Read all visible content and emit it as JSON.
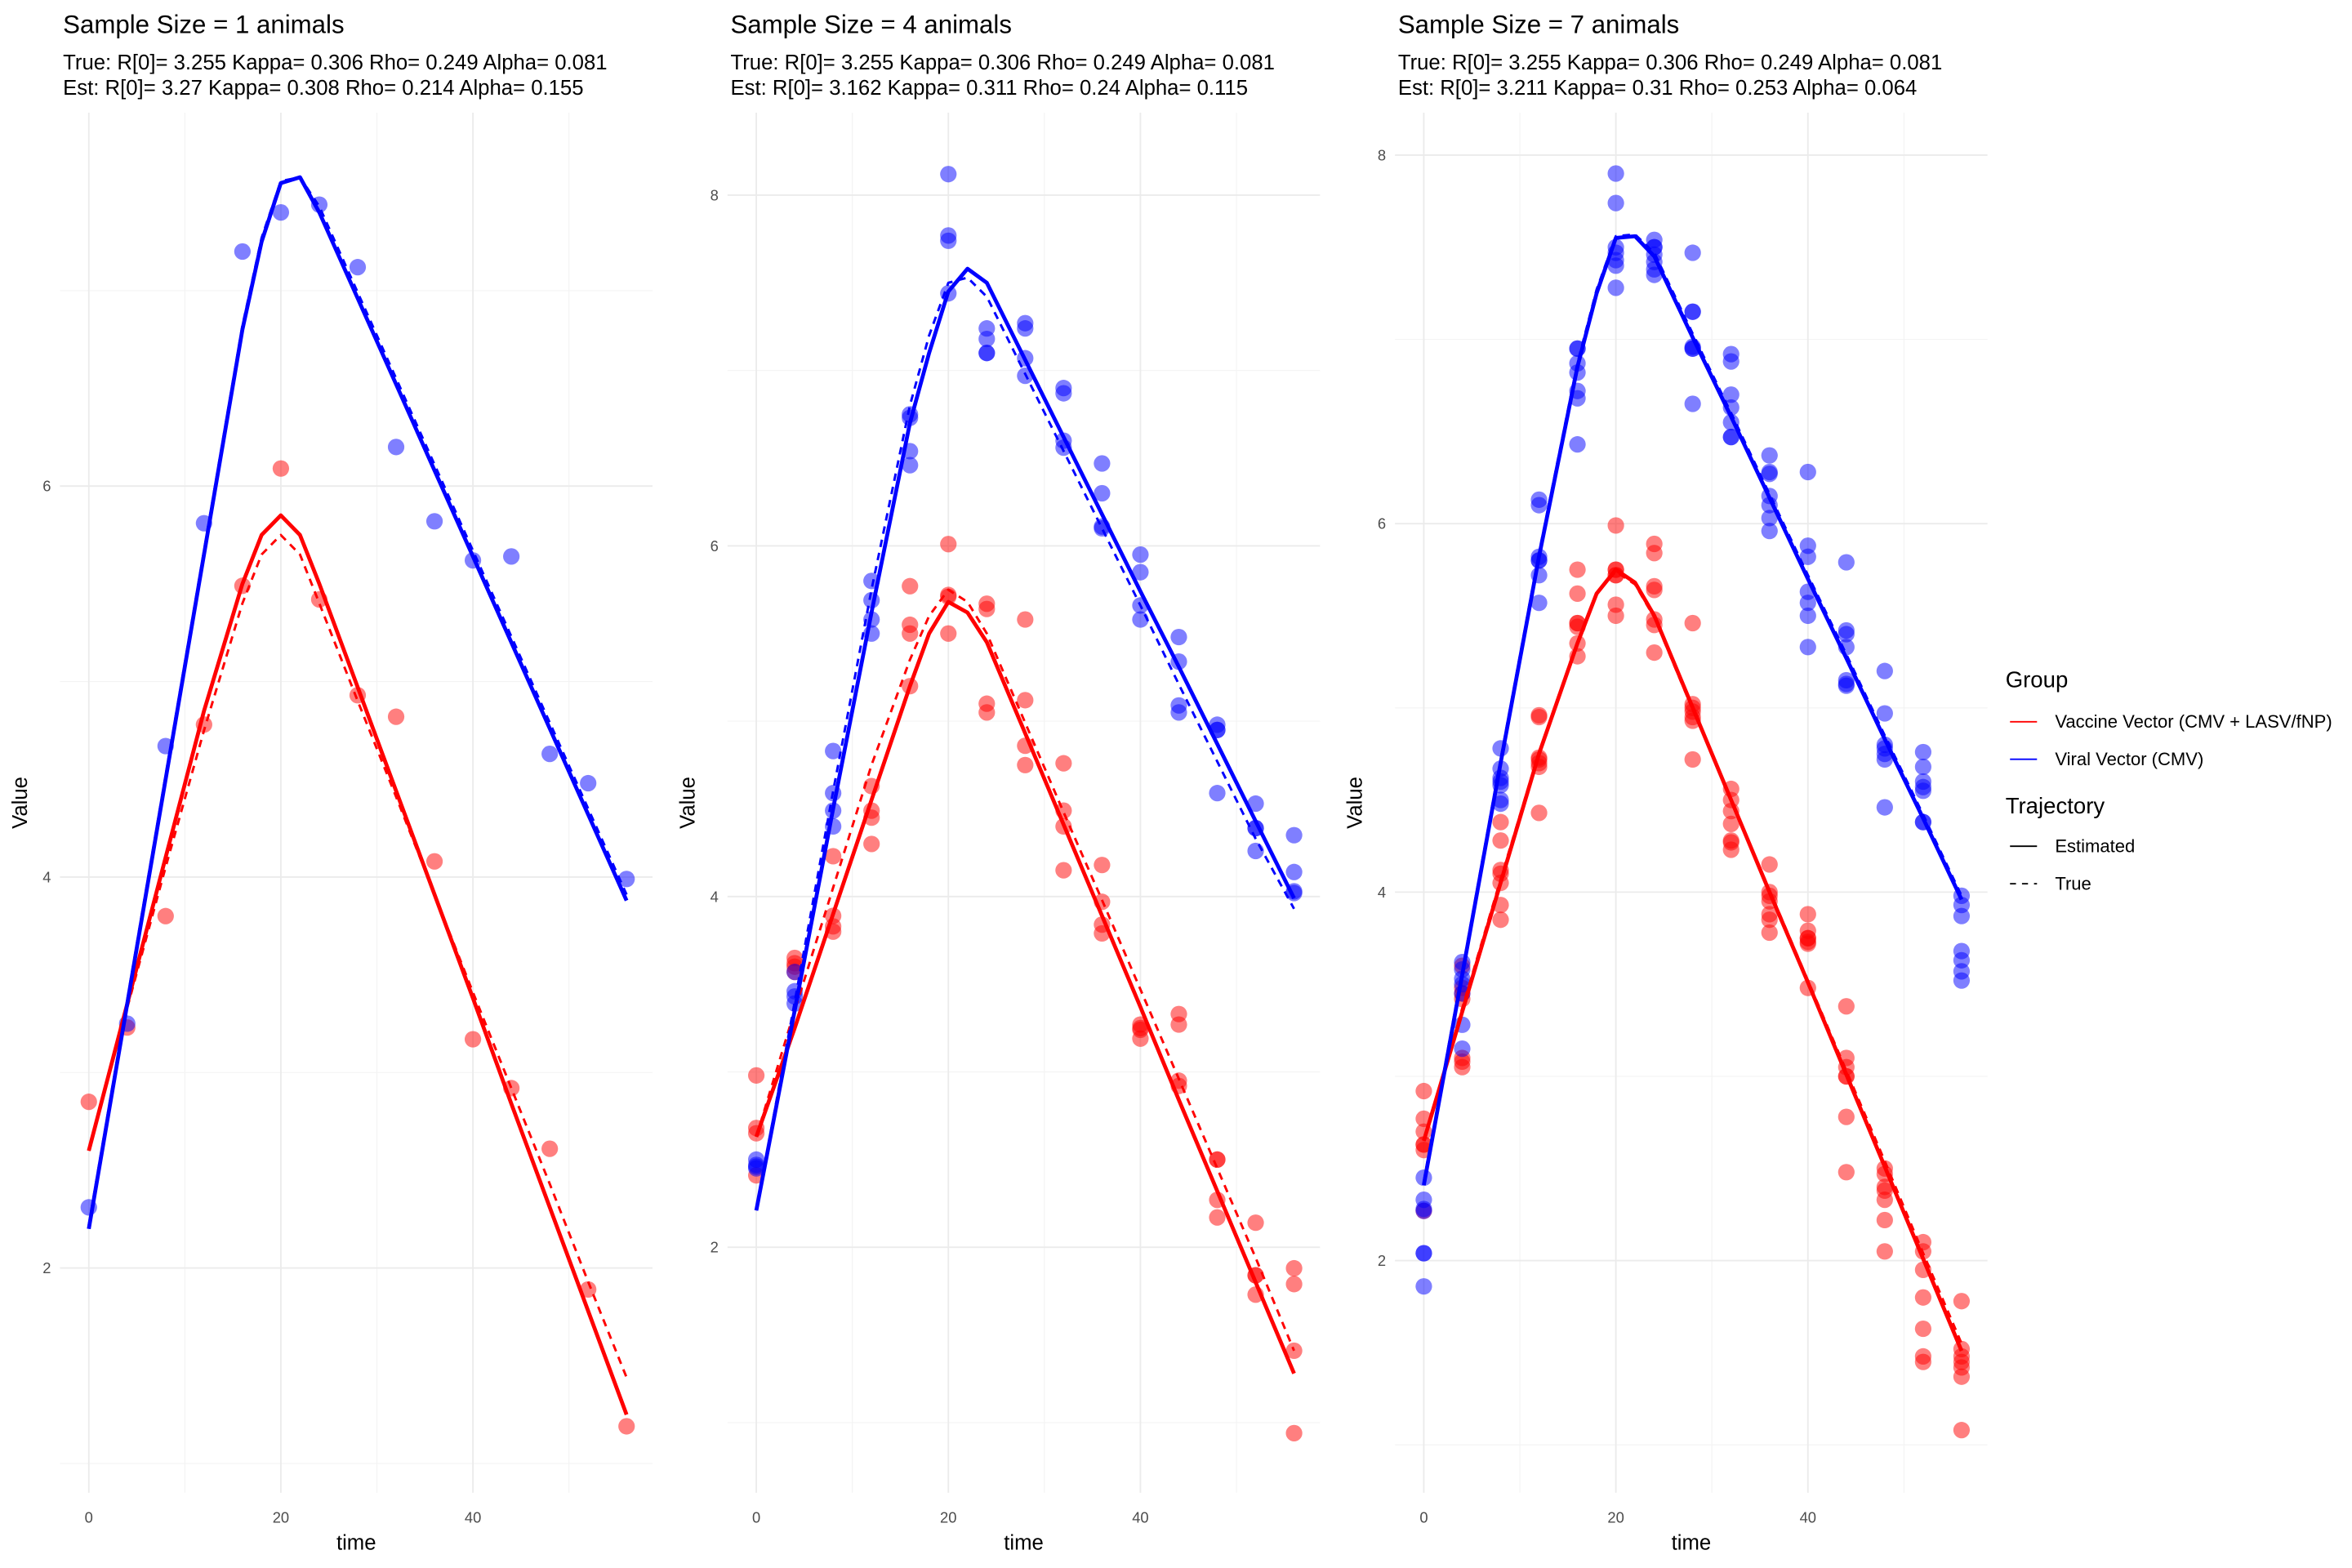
{
  "legend": {
    "group_title": "Group",
    "groups": [
      {
        "label": "Vaccine Vector (CMV + LASV/fNP)",
        "color": "#FF0000"
      },
      {
        "label": "Viral Vector (CMV)",
        "color": "#0000FF"
      }
    ],
    "trajectory_title": "Trajectory",
    "trajectories": [
      {
        "label": "Estimated",
        "style": "solid"
      },
      {
        "label": "True",
        "style": "dashed"
      }
    ]
  },
  "chart_data": [
    {
      "type": "scatter",
      "title": "Sample Size = 1 animals",
      "subtitle_true": "True: R[0]= 3.255 Kappa= 0.306 Rho= 0.249 Alpha= 0.081",
      "subtitle_est": "Est: R[0]= 3.27 Kappa= 0.308 Rho= 0.214 Alpha= 0.155",
      "xlabel": "time",
      "ylabel": "Value",
      "xlim": [
        -3,
        58.7
      ],
      "ylim": [
        0.85,
        7.91
      ],
      "xticks": [
        0,
        20,
        40
      ],
      "yticks": [
        2,
        4,
        6
      ],
      "times": [
        0,
        4,
        8,
        12,
        16,
        20,
        24,
        28,
        32,
        36,
        40,
        44,
        48,
        52,
        56
      ],
      "observations": {
        "blue": [
          [
            2.31
          ],
          [
            3.25
          ],
          [
            4.67
          ],
          [
            5.81
          ],
          [
            7.2
          ],
          [
            7.4
          ],
          [
            7.44
          ],
          [
            7.12
          ],
          [
            6.2
          ],
          [
            5.82
          ],
          [
            5.62
          ],
          [
            5.64
          ],
          [
            4.63
          ],
          [
            4.48
          ],
          [
            3.99
          ]
        ],
        "red": [
          [
            2.85
          ],
          [
            3.23
          ],
          [
            3.8
          ],
          [
            4.78
          ],
          [
            5.49
          ],
          [
            6.09
          ],
          [
            5.42
          ],
          [
            4.93
          ],
          [
            4.82
          ],
          [
            4.08
          ],
          [
            3.17
          ],
          [
            2.92
          ],
          [
            2.61
          ],
          [
            1.89
          ],
          [
            1.19
          ]
        ]
      },
      "curve_times": [
        0,
        4,
        8,
        12,
        16,
        18,
        20,
        22,
        24,
        28,
        32,
        36,
        40,
        44,
        48,
        52,
        56
      ],
      "curves": {
        "blue_est": [
          2.2,
          3.35,
          4.5,
          5.65,
          6.8,
          7.25,
          7.55,
          7.58,
          7.4,
          6.96,
          6.52,
          6.08,
          5.64,
          5.2,
          4.76,
          4.32,
          3.88
        ],
        "blue_true": [
          2.22,
          3.37,
          4.52,
          5.67,
          6.82,
          7.27,
          7.56,
          7.58,
          7.43,
          6.99,
          6.55,
          6.11,
          5.67,
          5.23,
          4.79,
          4.35,
          3.91
        ],
        "red_est": [
          2.6,
          3.35,
          4.1,
          4.85,
          5.5,
          5.75,
          5.85,
          5.75,
          5.5,
          4.97,
          4.44,
          3.91,
          3.38,
          2.84,
          2.31,
          1.78,
          1.25
        ],
        "red_true": [
          2.6,
          3.33,
          4.05,
          4.75,
          5.4,
          5.65,
          5.75,
          5.65,
          5.4,
          4.9,
          4.41,
          3.91,
          3.41,
          2.92,
          2.43,
          1.93,
          1.44
        ]
      }
    },
    {
      "type": "scatter",
      "title": "Sample Size = 4 animals",
      "subtitle_true": "True: R[0]= 3.255 Kappa= 0.306 Rho= 0.249 Alpha= 0.081",
      "subtitle_est": "Est: R[0]= 3.162 Kappa= 0.311 Rho= 0.24 Alpha= 0.115",
      "xlabel": "time",
      "ylabel": "Value",
      "xlim": [
        -3,
        58.7
      ],
      "ylim": [
        0.6,
        8.47
      ],
      "xticks": [
        0,
        20,
        40
      ],
      "yticks": [
        2,
        4,
        6,
        8
      ],
      "times": [
        0,
        4,
        8,
        12,
        16,
        20,
        24,
        28,
        32,
        36,
        40,
        44,
        48,
        52,
        56
      ],
      "observations": {
        "blue": [
          [
            2.5,
            2.47,
            2.45,
            2.46
          ],
          [
            3.57,
            3.46,
            3.43,
            3.39
          ],
          [
            4.83,
            4.59,
            4.49,
            4.4
          ],
          [
            5.8,
            5.69,
            5.58,
            5.5
          ],
          [
            6.75,
            6.73,
            6.54,
            6.46
          ],
          [
            8.12,
            7.77,
            7.74,
            7.44
          ],
          [
            7.24,
            7.18,
            7.1,
            7.1
          ],
          [
            7.27,
            7.24,
            7.07,
            6.97
          ],
          [
            6.9,
            6.87,
            6.6,
            6.56
          ],
          [
            6.47,
            6.3,
            6.11,
            6.1
          ],
          [
            5.95,
            5.85,
            5.66,
            5.58
          ],
          [
            5.48,
            5.34,
            5.09,
            5.05
          ],
          [
            4.98,
            4.95,
            4.59,
            4.95
          ],
          [
            4.53,
            4.39,
            4.26,
            4.39
          ],
          [
            4.35,
            4.14,
            4.03,
            4.02
          ]
        ],
        "red": [
          [
            2.98,
            2.68,
            2.41,
            2.65
          ],
          [
            3.65,
            3.62,
            3.57,
            3.6
          ],
          [
            4.23,
            3.89,
            3.83,
            3.8
          ],
          [
            4.63,
            4.49,
            4.45,
            4.3
          ],
          [
            5.77,
            5.55,
            5.5,
            5.2
          ],
          [
            6.01,
            5.71,
            5.5,
            5.72
          ],
          [
            5.67,
            5.64,
            5.1,
            5.05
          ],
          [
            5.58,
            5.12,
            4.86,
            4.75
          ],
          [
            4.76,
            4.49,
            4.4,
            4.15
          ],
          [
            4.18,
            3.97,
            3.84,
            3.79
          ],
          [
            3.27,
            3.24,
            3.19,
            3.25
          ],
          [
            3.33,
            3.27,
            2.95,
            2.92
          ],
          [
            2.5,
            2.27,
            2.17,
            2.5
          ],
          [
            2.14,
            1.84,
            1.73,
            1.84
          ],
          [
            1.88,
            1.79,
            1.41,
            0.94
          ]
        ]
      },
      "curve_times": [
        0,
        4,
        8,
        12,
        16,
        18,
        20,
        22,
        24,
        28,
        32,
        36,
        40,
        44,
        48,
        52,
        56
      ],
      "curves": {
        "blue_est": [
          2.21,
          3.35,
          4.5,
          5.62,
          6.7,
          7.1,
          7.45,
          7.58,
          7.5,
          7.06,
          6.62,
          6.18,
          5.74,
          5.31,
          4.87,
          4.43,
          3.99
        ],
        "blue_true": [
          2.21,
          3.4,
          4.6,
          5.75,
          6.8,
          7.2,
          7.5,
          7.53,
          7.42,
          6.98,
          6.54,
          6.1,
          5.66,
          5.21,
          4.77,
          4.33,
          3.93
        ],
        "red_est": [
          2.63,
          3.25,
          3.9,
          4.55,
          5.2,
          5.5,
          5.68,
          5.62,
          5.45,
          4.93,
          4.41,
          3.89,
          3.37,
          2.84,
          2.32,
          1.8,
          1.28
        ],
        "red_true": [
          2.63,
          3.35,
          4.05,
          4.75,
          5.35,
          5.6,
          5.75,
          5.68,
          5.5,
          4.99,
          4.48,
          3.98,
          3.47,
          2.96,
          2.45,
          1.94,
          1.41
        ]
      }
    },
    {
      "type": "scatter",
      "title": "Sample Size = 7 animals",
      "subtitle_true": "True: R[0]= 3.255 Kappa= 0.306 Rho= 0.249 Alpha= 0.081",
      "subtitle_est": "Est: R[0]= 3.211 Kappa= 0.31 Rho= 0.253 Alpha= 0.064",
      "xlabel": "time",
      "ylabel": "Value",
      "xlim": [
        -3,
        58.7
      ],
      "ylim": [
        0.74,
        8.23
      ],
      "xticks": [
        0,
        20,
        40
      ],
      "yticks": [
        2,
        4,
        6,
        8
      ],
      "times": [
        0,
        4,
        8,
        12,
        16,
        20,
        24,
        28,
        32,
        36,
        40,
        44,
        48,
        52,
        56
      ],
      "observations": {
        "blue": [
          [
            2.33,
            2.28,
            2.27,
            2.04,
            2.04,
            1.86,
            2.45
          ],
          [
            3.62,
            3.58,
            3.53,
            3.5,
            3.45,
            3.28,
            3.15
          ],
          [
            4.78,
            4.67,
            4.62,
            4.58,
            4.5,
            4.48,
            4.6
          ],
          [
            6.13,
            6.1,
            5.82,
            5.8,
            5.72,
            5.57,
            5.8
          ],
          [
            6.95,
            6.87,
            6.82,
            6.72,
            6.68,
            6.43,
            6.95
          ],
          [
            7.9,
            7.74,
            7.47,
            7.43,
            7.4,
            7.28,
            7.5
          ],
          [
            7.54,
            7.5,
            7.46,
            7.42,
            7.38,
            7.35,
            7.5
          ],
          [
            7.47,
            7.15,
            6.96,
            6.95,
            6.65,
            7.15,
            6.95
          ],
          [
            6.92,
            6.88,
            6.7,
            6.63,
            6.55,
            6.47,
            6.47
          ],
          [
            6.37,
            6.28,
            6.27,
            6.15,
            6.1,
            6.03,
            5.96
          ],
          [
            6.28,
            5.88,
            5.82,
            5.63,
            5.57,
            5.5,
            5.33
          ],
          [
            5.79,
            5.42,
            5.4,
            5.33,
            5.15,
            5.12,
            5.13
          ],
          [
            5.2,
            4.97,
            4.8,
            4.78,
            4.75,
            4.72,
            4.46
          ],
          [
            4.76,
            4.68,
            4.6,
            4.57,
            4.55,
            4.38,
            4.38
          ],
          [
            3.98,
            3.93,
            3.87,
            3.68,
            3.63,
            3.57,
            3.52
          ]
        ],
        "red": [
          [
            2.92,
            2.77,
            2.7,
            2.63,
            2.6,
            2.27,
            2.63
          ],
          [
            3.6,
            3.48,
            3.42,
            3.1,
            3.08,
            3.05,
            3.45
          ],
          [
            4.38,
            4.28,
            4.12,
            4.05,
            3.93,
            3.85,
            4.1
          ],
          [
            4.96,
            4.73,
            4.7,
            4.72,
            4.68,
            4.43,
            4.95
          ],
          [
            5.75,
            5.62,
            5.46,
            5.35,
            5.28,
            5.44,
            5.46
          ],
          [
            5.99,
            5.75,
            5.72,
            5.56,
            5.5,
            5.72,
            5.75
          ],
          [
            5.89,
            5.84,
            5.66,
            5.64,
            5.48,
            5.45,
            5.3
          ],
          [
            5.46,
            5.02,
            4.98,
            4.93,
            4.72,
            4.95,
            5.0
          ],
          [
            4.56,
            4.44,
            4.37,
            4.28,
            4.27,
            4.23,
            4.5
          ],
          [
            4.15,
            4.0,
            3.98,
            3.88,
            3.85,
            3.78,
            3.95
          ],
          [
            3.88,
            3.79,
            3.75,
            3.73,
            3.72,
            3.48,
            3.75
          ],
          [
            3.38,
            3.1,
            3.05,
            3.0,
            2.78,
            2.48,
            3.0
          ],
          [
            2.5,
            2.47,
            2.38,
            2.33,
            2.22,
            2.05,
            2.4
          ],
          [
            2.1,
            2.05,
            1.95,
            1.8,
            1.63,
            1.48,
            1.45
          ],
          [
            1.78,
            1.52,
            1.48,
            1.45,
            1.42,
            1.37,
            1.08
          ]
        ]
      },
      "curve_times": [
        0,
        4,
        8,
        12,
        16,
        18,
        20,
        22,
        24,
        28,
        32,
        36,
        40,
        44,
        48,
        52,
        56
      ],
      "curves": {
        "blue_est": [
          2.41,
          3.55,
          4.7,
          5.82,
          6.85,
          7.25,
          7.55,
          7.56,
          7.45,
          7.01,
          6.58,
          6.14,
          5.7,
          5.27,
          4.83,
          4.4,
          3.96
        ],
        "blue_true": [
          2.43,
          3.57,
          4.72,
          5.84,
          6.87,
          7.27,
          7.56,
          7.57,
          7.47,
          7.03,
          6.6,
          6.16,
          5.72,
          5.29,
          4.85,
          4.42,
          3.98
        ],
        "red_est": [
          2.65,
          3.35,
          4.05,
          4.75,
          5.35,
          5.62,
          5.75,
          5.68,
          5.5,
          5.0,
          4.5,
          4.0,
          3.51,
          3.01,
          2.51,
          2.01,
          1.51
        ],
        "red_true": [
          2.65,
          3.37,
          4.07,
          4.76,
          5.36,
          5.62,
          5.74,
          5.67,
          5.49,
          4.99,
          4.5,
          4.01,
          3.52,
          3.03,
          2.54,
          2.04,
          1.55
        ]
      }
    }
  ]
}
